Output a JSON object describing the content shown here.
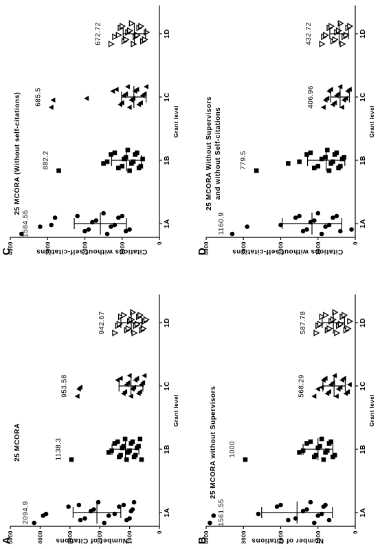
{
  "chart_data": [
    {
      "type": "dotplot",
      "panel": "A",
      "title": "25 MCORA",
      "xlabel": "Grant level",
      "ylabel": "Number of Citations",
      "categories": [
        "1A",
        "1B",
        "1C",
        "1D"
      ],
      "ylim": [
        0,
        5000
      ],
      "yticks": [
        0,
        1000,
        2000,
        3000,
        4000,
        5000
      ],
      "markers": [
        "circle",
        "square",
        "triangle",
        "triangle-open"
      ],
      "color": "#000000",
      "points": [
        [
          4200,
          3900,
          3800,
          3050,
          2700,
          2650,
          2500,
          2300,
          2200,
          2050,
          1850,
          1700,
          1500,
          1350,
          1200,
          1100,
          1000,
          950,
          900,
          850
        ],
        [
          2950,
          1700,
          1600,
          1500,
          1400,
          1350,
          1300,
          1250,
          1200,
          1150,
          1100,
          1050,
          1000,
          950,
          900,
          850,
          800,
          750,
          700,
          650,
          600
        ],
        [
          2750,
          2700,
          2650,
          1400,
          1300,
          1200,
          1150,
          1100,
          1050,
          1000,
          950,
          900,
          850,
          800,
          750,
          700,
          650,
          600,
          550,
          500
        ],
        [
          1500,
          1400,
          1350,
          1300,
          1200,
          1100,
          1050,
          1000,
          950,
          900,
          850,
          800,
          750,
          700,
          650,
          600,
          550,
          500,
          450
        ]
      ],
      "means": [
        2094.9,
        1138.3,
        953.58,
        942.67
      ],
      "errors": [
        800,
        450,
        400,
        350
      ]
    },
    {
      "type": "dotplot",
      "panel": "B",
      "title": "25 MCORA without Supervisors",
      "xlabel": "Grant level",
      "ylabel": "Number of Citations",
      "categories": [
        "1A",
        "1B",
        "1C",
        "1D"
      ],
      "ylim": [
        0,
        4000
      ],
      "yticks": [
        0,
        1000,
        2000,
        3000,
        4000
      ],
      "markers": [
        "circle",
        "square",
        "triangle",
        "triangle-open"
      ],
      "color": "#000000",
      "points": [
        [
          3900,
          3800,
          2600,
          2100,
          2000,
          1800,
          1600,
          1400,
          1300,
          1200,
          1100,
          1000,
          900,
          850,
          800,
          700
        ],
        [
          2950,
          1500,
          1400,
          1300,
          1200,
          1100,
          1050,
          1000,
          950,
          900,
          850,
          800,
          750,
          700,
          650,
          600,
          550
        ],
        [
          1100,
          1000,
          900,
          850,
          800,
          750,
          700,
          650,
          600,
          550,
          500,
          450,
          400,
          350,
          300,
          250,
          200,
          150
        ],
        [
          1050,
          1000,
          950,
          900,
          800,
          750,
          700,
          650,
          600,
          550,
          500,
          450,
          400,
          350,
          300,
          250,
          200,
          150
        ]
      ],
      "means": [
        1561.55,
        1000,
        568.29,
        587.78
      ],
      "errors": [
        950,
        400,
        300,
        300
      ]
    },
    {
      "type": "dotplot",
      "panel": "C",
      "title": "25 MCORA (Without self-citations)",
      "xlabel": "Grant level",
      "ylabel": "Citations without self-citations",
      "categories": [
        "1A",
        "1B",
        "1C",
        "1D"
      ],
      "ylim": [
        0,
        4000
      ],
      "yticks": [
        0,
        1000,
        2000,
        3000,
        4000
      ],
      "markers": [
        "circle",
        "square",
        "triangle",
        "triangle-open"
      ],
      "color": "#000000",
      "points": [
        [
          3700,
          3200,
          2900,
          2800,
          2200,
          2000,
          1900,
          1800,
          1700,
          1500,
          1400,
          1300,
          1200,
          1100,
          1000,
          900,
          800
        ],
        [
          2700,
          1500,
          1400,
          1300,
          1200,
          1100,
          1000,
          950,
          900,
          850,
          800,
          750,
          700,
          650,
          600,
          550,
          500,
          450
        ],
        [
          2900,
          2850,
          1950,
          1250,
          1150,
          1050,
          1000,
          950,
          900,
          850,
          800,
          750,
          700,
          650,
          600,
          550,
          500,
          450,
          400,
          350
        ],
        [
          1300,
          1200,
          1100,
          1050,
          1000,
          950,
          900,
          850,
          800,
          750,
          700,
          650,
          600,
          550,
          500,
          450,
          400,
          350
        ]
      ],
      "means": [
        1584.55,
        882.2,
        685.5,
        672.72
      ],
      "errors": [
        700,
        400,
        330,
        300
      ]
    },
    {
      "type": "dotplot",
      "panel": "D",
      "title": [
        "25 MCORA Without Supervisors",
        "and without Self-citations"
      ],
      "xlabel": "Grant level",
      "ylabel": "Citations without self-citations",
      "categories": [
        "1A",
        "1B",
        "1C",
        "1D"
      ],
      "ylim": [
        0,
        4000
      ],
      "yticks": [
        0,
        1000,
        2000,
        3000,
        4000
      ],
      "markers": [
        "circle",
        "square",
        "triangle",
        "triangle-open"
      ],
      "color": "#000000",
      "points": [
        [
          3300,
          2900,
          2000,
          1600,
          1500,
          1400,
          1300,
          1200,
          1100,
          1000,
          900,
          800,
          700,
          600,
          500,
          400,
          100
        ],
        [
          2650,
          1800,
          1500,
          1300,
          1200,
          1100,
          1000,
          900,
          800,
          750,
          700,
          650,
          600,
          550,
          500,
          450,
          400,
          350,
          300
        ],
        [
          850,
          800,
          750,
          700,
          650,
          600,
          550,
          500,
          450,
          400,
          350,
          300,
          250,
          200,
          150
        ],
        [
          900,
          850,
          800,
          700,
          650,
          600,
          550,
          500,
          450,
          400,
          350,
          300,
          250,
          200,
          150
        ]
      ],
      "means": [
        1160.9,
        779.5,
        406.96,
        432.72
      ],
      "errors": [
        800,
        500,
        250,
        250
      ]
    }
  ]
}
